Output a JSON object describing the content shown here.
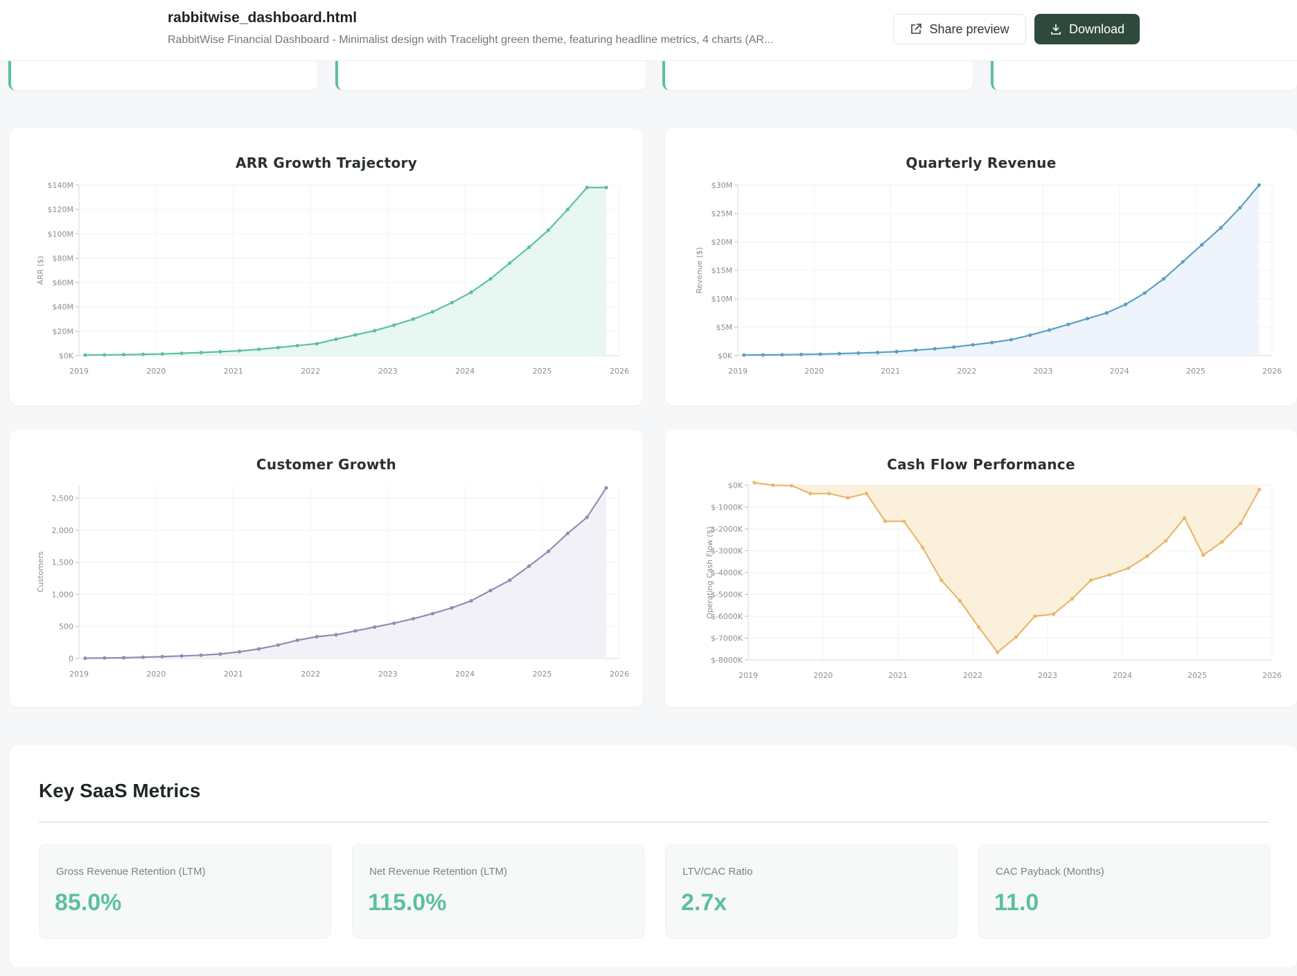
{
  "header": {
    "file_name": "rabbitwise_dashboard.html",
    "description": "RabbitWise Financial Dashboard - Minimalist design with Tracelight green theme, featuring headline metrics, 4 charts (AR...",
    "share_label": "Share preview",
    "download_label": "Download"
  },
  "colors": {
    "accent": "#5cc0a0",
    "download_bg": "#2f4a3c",
    "arr_line": "#5cc0a0",
    "arr_fill": "#e8f7f1",
    "rev_line": "#5b9fc0",
    "rev_fill": "#edf4fb",
    "cust_line": "#8c8fb3",
    "cust_fill": "#f3f1f8",
    "cash_line": "#e8b76c",
    "cash_fill": "#fbf0dc"
  },
  "chart_data": [
    {
      "id": "arr",
      "type": "area",
      "title": "ARR Growth Trajectory",
      "ylabel": "ARR ($)",
      "xlabel": "",
      "xlim": [
        2019,
        2026
      ],
      "ylim": [
        0,
        140
      ],
      "yticks": [
        0,
        20,
        40,
        60,
        80,
        100,
        120,
        140
      ],
      "ytick_labels": [
        "$0K",
        "$20M",
        "$40M",
        "$60M",
        "$80M",
        "$100M",
        "$120M",
        "$140M"
      ],
      "xticks": [
        "2019",
        "2020",
        "2021",
        "2022",
        "2023",
        "2024",
        "2025",
        "2026"
      ],
      "x": [
        2019.08,
        2019.33,
        2019.58,
        2019.83,
        2020.08,
        2020.33,
        2020.58,
        2020.83,
        2021.08,
        2021.33,
        2021.58,
        2021.83,
        2022.08,
        2022.33,
        2022.58,
        2022.83,
        2023.08,
        2023.33,
        2023.58,
        2023.83,
        2024.08,
        2024.33,
        2024.58,
        2024.83,
        2025.08,
        2025.33,
        2025.58,
        2025.83
      ],
      "values": [
        0.5,
        0.6,
        0.8,
        1.0,
        1.4,
        1.9,
        2.5,
        3.2,
        4.0,
        5.2,
        6.6,
        8.2,
        9.8,
        13.5,
        17.0,
        20.5,
        25.0,
        30.0,
        36.0,
        43.5,
        52.0,
        63.0,
        76.0,
        89.0,
        103.0,
        120.0,
        138.0,
        138.0
      ]
    },
    {
      "id": "revenue",
      "type": "area",
      "title": "Quarterly Revenue",
      "ylabel": "Revenue ($)",
      "xlabel": "",
      "xlim": [
        2019,
        2026
      ],
      "ylim": [
        0,
        30
      ],
      "yticks": [
        0,
        5,
        10,
        15,
        20,
        25,
        30
      ],
      "ytick_labels": [
        "$0K",
        "$5M",
        "$10M",
        "$15M",
        "$20M",
        "$25M",
        "$30M"
      ],
      "xticks": [
        "2019",
        "2020",
        "2021",
        "2022",
        "2023",
        "2024",
        "2025",
        "2026"
      ],
      "x": [
        2019.08,
        2019.33,
        2019.58,
        2019.83,
        2020.08,
        2020.33,
        2020.58,
        2020.83,
        2021.08,
        2021.33,
        2021.58,
        2021.83,
        2022.08,
        2022.33,
        2022.58,
        2022.83,
        2023.08,
        2023.33,
        2023.58,
        2023.83,
        2024.08,
        2024.33,
        2024.58,
        2024.83,
        2025.08,
        2025.33,
        2025.58,
        2025.83
      ],
      "values": [
        0.1,
        0.12,
        0.15,
        0.2,
        0.25,
        0.35,
        0.45,
        0.55,
        0.7,
        0.95,
        1.2,
        1.5,
        1.9,
        2.3,
        2.8,
        3.6,
        4.5,
        5.5,
        6.5,
        7.5,
        9.0,
        11.0,
        13.5,
        16.5,
        19.5,
        22.5,
        26.0,
        30.0
      ]
    },
    {
      "id": "customers",
      "type": "area",
      "title": "Customer Growth",
      "ylabel": "Customers",
      "xlabel": "",
      "xlim": [
        2019,
        2026
      ],
      "ylim": [
        0,
        2700
      ],
      "yticks": [
        0,
        500,
        1000,
        1500,
        2000,
        2500
      ],
      "ytick_labels": [
        "0",
        "500",
        "1,000",
        "1,500",
        "2,000",
        "2,500"
      ],
      "xticks": [
        "2019",
        "2020",
        "2021",
        "2022",
        "2023",
        "2024",
        "2025",
        "2026"
      ],
      "x": [
        2019.08,
        2019.33,
        2019.58,
        2019.83,
        2020.08,
        2020.33,
        2020.58,
        2020.83,
        2021.08,
        2021.33,
        2021.58,
        2021.83,
        2022.08,
        2022.33,
        2022.58,
        2022.83,
        2023.08,
        2023.33,
        2023.58,
        2023.83,
        2024.08,
        2024.33,
        2024.58,
        2024.83,
        2025.08,
        2025.33,
        2025.58,
        2025.83
      ],
      "values": [
        5,
        8,
        12,
        20,
        30,
        40,
        52,
        70,
        105,
        150,
        210,
        285,
        340,
        370,
        430,
        490,
        550,
        620,
        700,
        790,
        900,
        1060,
        1220,
        1440,
        1670,
        1950,
        2200,
        2660
      ]
    },
    {
      "id": "cashflow",
      "type": "area",
      "title": "Cash Flow Performance",
      "ylabel": "Operating Cash Flow ($)",
      "xlabel": "",
      "xlim": [
        2019,
        2026
      ],
      "ylim": [
        -8000,
        0
      ],
      "yticks": [
        0,
        -1000,
        -2000,
        -3000,
        -4000,
        -5000,
        -6000,
        -7000,
        -8000
      ],
      "ytick_labels": [
        "$0K",
        "$-1000K",
        "$-2000K",
        "$-3000K",
        "$-4000K",
        "$-5000K",
        "$-6000K",
        "$-7000K",
        "$-8000K"
      ],
      "xticks": [
        "2019",
        "2020",
        "2021",
        "2022",
        "2023",
        "2024",
        "2025",
        "2026"
      ],
      "x": [
        2019.08,
        2019.33,
        2019.58,
        2019.83,
        2020.08,
        2020.33,
        2020.58,
        2020.83,
        2021.08,
        2021.33,
        2021.58,
        2021.83,
        2022.08,
        2022.33,
        2022.58,
        2022.83,
        2023.08,
        2023.33,
        2023.58,
        2023.83,
        2024.08,
        2024.33,
        2024.58,
        2024.83,
        2025.08,
        2025.33,
        2025.58,
        2025.83
      ],
      "values": [
        120,
        0,
        -20,
        -380,
        -380,
        -580,
        -380,
        -1650,
        -1650,
        -2850,
        -4350,
        -5300,
        -6500,
        -7650,
        -6950,
        -6000,
        -5900,
        -5200,
        -4350,
        -4100,
        -3800,
        -3250,
        -2550,
        -1500,
        -3200,
        -2600,
        -1750,
        -200
      ]
    }
  ],
  "metrics": {
    "title": "Key SaaS Metrics",
    "items": [
      {
        "label": "Gross Revenue Retention (LTM)",
        "value": "85.0%"
      },
      {
        "label": "Net Revenue Retention (LTM)",
        "value": "115.0%"
      },
      {
        "label": "LTV/CAC Ratio",
        "value": "2.7x"
      },
      {
        "label": "CAC Payback (Months)",
        "value": "11.0"
      }
    ]
  }
}
